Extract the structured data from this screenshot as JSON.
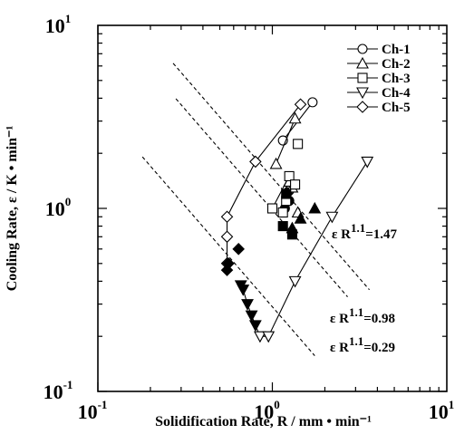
{
  "chart_data": {
    "type": "scatter",
    "xlabel": "Solidification Rate, R / mm • min⁻¹",
    "ylabel": "Cooling Rate, ε  / K • min⁻¹",
    "xscale": "log",
    "yscale": "log",
    "xlim": [
      0.1,
      10
    ],
    "ylim": [
      0.1,
      10
    ],
    "x_ticks": [
      {
        "value": 0.1,
        "base": "10",
        "exp": "-1"
      },
      {
        "value": 1,
        "base": "10",
        "exp": "0"
      },
      {
        "value": 10,
        "base": "10",
        "exp": "1"
      }
    ],
    "y_ticks": [
      {
        "value": 0.1,
        "base": "10",
        "exp": "-1"
      },
      {
        "value": 1,
        "base": "10",
        "exp": "0"
      },
      {
        "value": 10,
        "base": "10",
        "exp": "1"
      }
    ],
    "legend_position": "top-right",
    "series": [
      {
        "name": "Ch-1",
        "marker": "circle",
        "open": [
          [
            1.15,
            2.35
          ],
          [
            1.7,
            3.8
          ],
          [
            1.25,
            1.25
          ]
        ],
        "open_line": [
          [
            1.15,
            2.35
          ],
          [
            1.7,
            3.8
          ]
        ],
        "filled": [
          [
            1.22,
            1.22
          ],
          [
            1.25,
            1.1
          ],
          [
            1.18,
            1.0
          ]
        ]
      },
      {
        "name": "Ch-2",
        "marker": "triangle-up",
        "open": [
          [
            1.05,
            1.75
          ],
          [
            1.35,
            3.1
          ],
          [
            1.3,
            1.3
          ],
          [
            1.4,
            0.95
          ],
          [
            1.25,
            1.4
          ]
        ],
        "open_line": [
          [
            1.05,
            1.75
          ],
          [
            1.35,
            3.1
          ]
        ],
        "filled": [
          [
            1.75,
            1.0
          ],
          [
            1.45,
            0.88
          ],
          [
            1.3,
            0.78
          ]
        ]
      },
      {
        "name": "Ch-3",
        "marker": "square",
        "open": [
          [
            1.0,
            1.0
          ],
          [
            1.4,
            2.25
          ],
          [
            1.25,
            1.5
          ],
          [
            1.35,
            1.35
          ],
          [
            1.2,
            1.1
          ],
          [
            1.15,
            0.95
          ]
        ],
        "open_line": [
          [
            1.0,
            1.0
          ],
          [
            1.25,
            1.5
          ]
        ],
        "filled": [
          [
            1.15,
            0.8
          ],
          [
            1.3,
            0.72
          ],
          [
            1.2,
            1.2
          ]
        ]
      },
      {
        "name": "Ch-4",
        "marker": "triangle-down",
        "open": [
          [
            0.85,
            0.2
          ],
          [
            0.95,
            0.2
          ],
          [
            1.35,
            0.4
          ],
          [
            2.2,
            0.9
          ],
          [
            3.5,
            1.8
          ]
        ],
        "open_line": [
          [
            0.85,
            0.2
          ],
          [
            0.95,
            0.2
          ],
          [
            1.35,
            0.4
          ],
          [
            2.2,
            0.9
          ],
          [
            3.5,
            1.8
          ]
        ],
        "filled": [
          [
            0.68,
            0.36
          ],
          [
            0.66,
            0.38
          ],
          [
            0.72,
            0.3
          ],
          [
            0.76,
            0.26
          ],
          [
            0.8,
            0.23
          ]
        ],
        "filled_line": [
          [
            0.68,
            0.36
          ],
          [
            0.72,
            0.3
          ],
          [
            0.76,
            0.26
          ],
          [
            0.8,
            0.23
          ],
          [
            0.85,
            0.2
          ]
        ]
      },
      {
        "name": "Ch-5",
        "marker": "diamond",
        "open": [
          [
            0.55,
            0.9
          ],
          [
            0.8,
            1.8
          ],
          [
            1.45,
            3.7
          ],
          [
            0.55,
            0.7
          ],
          [
            0.55,
            0.5
          ]
        ],
        "open_line": [
          [
            0.55,
            0.5
          ],
          [
            0.55,
            0.9
          ],
          [
            0.8,
            1.8
          ],
          [
            1.45,
            3.7
          ]
        ],
        "filled": [
          [
            0.55,
            0.46
          ],
          [
            0.56,
            0.5
          ],
          [
            0.64,
            0.6
          ]
        ]
      }
    ],
    "constant_lines": [
      {
        "label": "ε R",
        "exp": "1.1",
        "value": "=1.47",
        "c": 1.47,
        "x_range": [
          0.27,
          3.6
        ]
      },
      {
        "label": "ε R",
        "exp": "1.1",
        "value": "=0.98",
        "c": 0.98,
        "x_range": [
          0.28,
          2.7
        ]
      },
      {
        "label": "ε R",
        "exp": "1.1",
        "value": "=0.29",
        "c": 0.29,
        "x_range": [
          0.18,
          1.75
        ]
      }
    ],
    "line_exponent": 1.1
  }
}
